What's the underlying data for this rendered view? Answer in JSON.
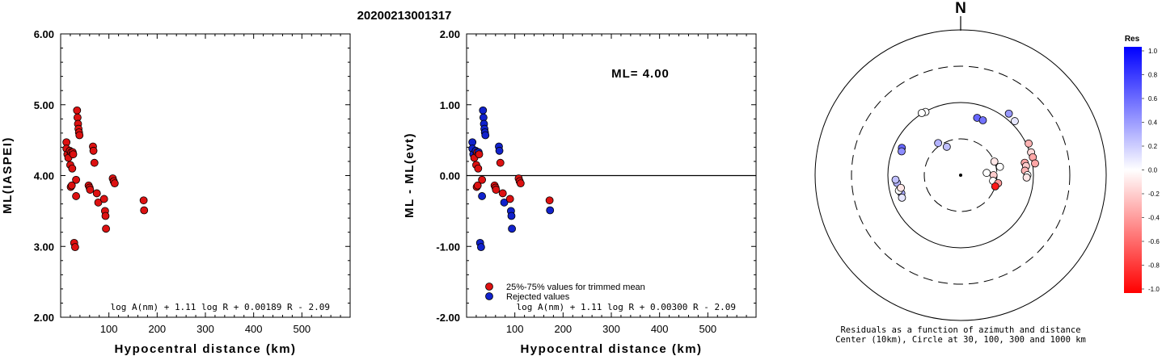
{
  "title": "20200213001317",
  "chart_data": [
    {
      "type": "scatter",
      "ylabel": "ML(IASPEI)",
      "xlabel": "Hypocentral distance (km)",
      "xlim": [
        0,
        600
      ],
      "ylim": [
        2.0,
        6.0
      ],
      "x_ticks": [
        "100",
        "200",
        "300",
        "400",
        "500"
      ],
      "y_ticks": [
        "2.00",
        "3.00",
        "4.00",
        "5.00",
        "6.00"
      ],
      "formula": "log A(nm) + 1.11 log R + 0.00189 R - 2.09",
      "marker_color": "#dd1111",
      "points": [
        [
          12,
          4.47
        ],
        [
          12,
          4.38
        ],
        [
          14,
          4.3
        ],
        [
          16,
          4.25
        ],
        [
          19,
          4.35
        ],
        [
          20,
          4.15
        ],
        [
          21,
          3.84
        ],
        [
          22,
          4.33
        ],
        [
          23,
          3.86
        ],
        [
          24,
          4.1
        ],
        [
          25,
          4.33
        ],
        [
          26,
          4.3
        ],
        [
          28,
          3.05
        ],
        [
          30,
          2.99
        ],
        [
          32,
          3.94
        ],
        [
          32,
          3.71
        ],
        [
          34,
          4.92
        ],
        [
          35,
          4.82
        ],
        [
          36,
          4.73
        ],
        [
          37,
          4.66
        ],
        [
          38,
          4.61
        ],
        [
          39,
          4.57
        ],
        [
          58,
          3.86
        ],
        [
          60,
          3.83
        ],
        [
          61,
          3.8
        ],
        [
          67,
          4.41
        ],
        [
          68,
          4.35
        ],
        [
          70,
          4.18
        ],
        [
          75,
          3.75
        ],
        [
          78,
          3.62
        ],
        [
          90,
          3.67
        ],
        [
          92,
          3.5
        ],
        [
          93,
          3.43
        ],
        [
          94,
          3.25
        ],
        [
          108,
          3.96
        ],
        [
          110,
          3.92
        ],
        [
          112,
          3.89
        ],
        [
          172,
          3.65
        ],
        [
          173,
          3.51
        ]
      ]
    },
    {
      "type": "scatter",
      "ylabel": "ML - ML(evt)",
      "xlabel": "Hypocentral distance (km)",
      "xlim": [
        0,
        600
      ],
      "ylim": [
        -2.0,
        2.0
      ],
      "x_ticks": [
        "100",
        "200",
        "300",
        "400",
        "500"
      ],
      "y_ticks": [
        "-2.00",
        "-1.00",
        "0.00",
        "1.00",
        "2.00"
      ],
      "annotation": "ML= 4.00",
      "formula": "log A(nm) + 1.11 log R + 0.00300 R - 2.09",
      "legend": [
        {
          "label": "25%-75% values for trimmed mean",
          "color": "#dd1111"
        },
        {
          "label": "Rejected values",
          "color": "#1122cc"
        }
      ],
      "points": [
        [
          12,
          0.47,
          "rej"
        ],
        [
          12,
          0.38,
          "rej"
        ],
        [
          14,
          0.3,
          "rej"
        ],
        [
          16,
          0.25,
          "acc"
        ],
        [
          19,
          0.35,
          "rej"
        ],
        [
          20,
          0.15,
          "acc"
        ],
        [
          21,
          -0.16,
          "acc"
        ],
        [
          22,
          0.33,
          "acc"
        ],
        [
          23,
          -0.14,
          "acc"
        ],
        [
          24,
          0.1,
          "acc"
        ],
        [
          25,
          0.33,
          "rej"
        ],
        [
          26,
          0.3,
          "acc"
        ],
        [
          28,
          -0.95,
          "rej"
        ],
        [
          30,
          -1.01,
          "rej"
        ],
        [
          32,
          -0.06,
          "acc"
        ],
        [
          32,
          -0.29,
          "rej"
        ],
        [
          34,
          0.92,
          "rej"
        ],
        [
          35,
          0.82,
          "rej"
        ],
        [
          36,
          0.73,
          "rej"
        ],
        [
          37,
          0.66,
          "rej"
        ],
        [
          38,
          0.61,
          "rej"
        ],
        [
          39,
          0.57,
          "rej"
        ],
        [
          58,
          -0.14,
          "acc"
        ],
        [
          60,
          -0.17,
          "acc"
        ],
        [
          61,
          -0.2,
          "acc"
        ],
        [
          67,
          0.41,
          "rej"
        ],
        [
          68,
          0.35,
          "rej"
        ],
        [
          70,
          0.18,
          "acc"
        ],
        [
          75,
          -0.25,
          "acc"
        ],
        [
          78,
          -0.38,
          "rej"
        ],
        [
          90,
          -0.33,
          "acc"
        ],
        [
          92,
          -0.5,
          "rej"
        ],
        [
          93,
          -0.57,
          "rej"
        ],
        [
          94,
          -0.75,
          "rej"
        ],
        [
          108,
          -0.04,
          "acc"
        ],
        [
          110,
          -0.08,
          "acc"
        ],
        [
          112,
          -0.11,
          "acc"
        ],
        [
          172,
          -0.35,
          "acc"
        ],
        [
          173,
          -0.49,
          "rej"
        ]
      ]
    },
    {
      "type": "polar-scatter",
      "north_label": "N",
      "caption_line1": "Residuals as a function of azimuth and distance",
      "caption_line2": "Center (10km), Circle at 30, 100, 300 and 1000 km",
      "colorbar_title": "Res",
      "colorbar_ticks": [
        "1.0",
        "0.8",
        "0.6",
        "0.4",
        "0.2",
        "0.0",
        "-0.2",
        "-0.4",
        "-0.6",
        "-0.8",
        "-1.0"
      ],
      "colorbar_range": [
        -1.0,
        1.0
      ],
      "rings_km": [
        10,
        30,
        100,
        300,
        1000
      ],
      "points": [
        {
          "az": 331,
          "dist_km": 99,
          "res": 0.0
        },
        {
          "az": 328,
          "dist_km": 102,
          "res": 0.0
        },
        {
          "az": 295,
          "dist_km": 77,
          "res": 0.6
        },
        {
          "az": 292,
          "dist_km": 74,
          "res": 0.45
        },
        {
          "az": 263,
          "dist_km": 75,
          "res": 0.3
        },
        {
          "az": 266,
          "dist_km": 78,
          "res": 0.25
        },
        {
          "az": 253,
          "dist_km": 70,
          "res": 0.35
        },
        {
          "az": 256,
          "dist_km": 74,
          "res": 0.0
        },
        {
          "az": 258,
          "dist_km": 68,
          "res": -0.1
        },
        {
          "az": 249,
          "dist_km": 72,
          "res": 0.1
        },
        {
          "az": 16,
          "dist_km": 65,
          "res": 0.6
        },
        {
          "az": 22,
          "dist_km": 64,
          "res": 0.55
        },
        {
          "az": 325,
          "dist_km": 33,
          "res": 0.3
        },
        {
          "az": 334,
          "dist_km": 26,
          "res": 0.25
        },
        {
          "az": 38,
          "dist_km": 118,
          "res": 0.4
        },
        {
          "az": 45,
          "dist_km": 112,
          "res": 0.1
        },
        {
          "az": 72,
          "dist_km": 104,
          "res": -0.15
        },
        {
          "az": 65,
          "dist_km": 107,
          "res": -0.3
        },
        {
          "az": 68,
          "dist_km": 30,
          "res": -0.1
        },
        {
          "az": 78,
          "dist_km": 34,
          "res": 0.0
        },
        {
          "az": 85,
          "dist_km": 22,
          "res": 0.0
        },
        {
          "az": 90,
          "dist_km": 27,
          "res": -0.2
        },
        {
          "az": 100,
          "dist_km": 27,
          "res": 0.0
        },
        {
          "az": 102,
          "dist_km": 32,
          "res": -0.4
        },
        {
          "az": 108,
          "dist_km": 30,
          "res": -0.9
        },
        {
          "az": 79,
          "dist_km": 78,
          "res": -0.35
        },
        {
          "az": 82,
          "dist_km": 80,
          "res": -0.2
        },
        {
          "az": 86,
          "dist_km": 76,
          "res": -0.3
        },
        {
          "az": 90,
          "dist_km": 82,
          "res": 0.0
        },
        {
          "az": 92,
          "dist_km": 80,
          "res": -0.1
        },
        {
          "az": 76,
          "dist_km": 105,
          "res": -0.35
        },
        {
          "az": 81,
          "dist_km": 108,
          "res": -0.35
        }
      ]
    }
  ]
}
